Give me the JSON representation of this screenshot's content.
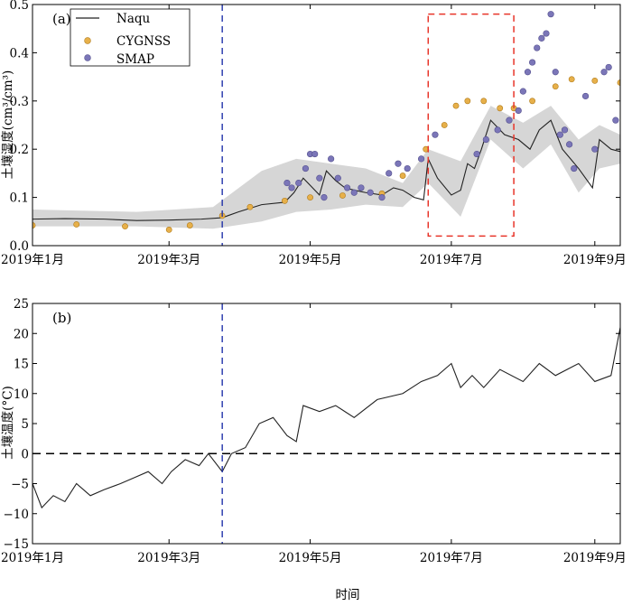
{
  "figure": {
    "xlabel": "时间",
    "x_ticks": [
      "2019年1月",
      "2019年3月",
      "2019年5月",
      "2019年7月",
      "2019年9月"
    ],
    "colors": {
      "naqu": "#222222",
      "band": "#d6d6d6",
      "cygnss_fill": "#e7b04a",
      "cygnss_edge": "#b07a18",
      "smap_fill": "#7b76b8",
      "smap_edge": "#54508e",
      "vline": "#2233aa",
      "box": "#e8352a"
    }
  },
  "chart_data": [
    {
      "type": "line+scatter",
      "panel_label": "(a)",
      "ylabel": "土壤湿度(cm³/cm³)",
      "ylim": [
        0.0,
        0.5
      ],
      "y_ticks": [
        "0.0",
        "0.1",
        "0.2",
        "0.3",
        "0.4",
        "0.5"
      ],
      "x_range": [
        "2019-01-01",
        "2019-09-12"
      ],
      "legend_position": "top-left",
      "legend": [
        "Naqu",
        "CYGNSS",
        "SMAP"
      ],
      "vertical_line_date": "2019-03-24",
      "highlight_box": {
        "x": [
          "2019-06-21",
          "2019-07-28"
        ],
        "y": [
          0.02,
          0.48
        ]
      },
      "series": [
        {
          "name": "Naqu",
          "style": "line",
          "points": [
            [
              "2019-01-01",
              0.055
            ],
            [
              "2019-01-15",
              0.056
            ],
            [
              "2019-02-01",
              0.055
            ],
            [
              "2019-02-15",
              0.052
            ],
            [
              "2019-03-01",
              0.053
            ],
            [
              "2019-03-15",
              0.055
            ],
            [
              "2019-03-24",
              0.058
            ],
            [
              "2019-03-31",
              0.07
            ],
            [
              "2019-04-10",
              0.085
            ],
            [
              "2019-04-20",
              0.09
            ],
            [
              "2019-04-24",
              0.11
            ],
            [
              "2019-04-28",
              0.14
            ],
            [
              "2019-05-02",
              0.12
            ],
            [
              "2019-05-05",
              0.105
            ],
            [
              "2019-05-08",
              0.155
            ],
            [
              "2019-05-12",
              0.135
            ],
            [
              "2019-05-16",
              0.12
            ],
            [
              "2019-05-20",
              0.115
            ],
            [
              "2019-05-25",
              0.11
            ],
            [
              "2019-06-01",
              0.105
            ],
            [
              "2019-06-06",
              0.12
            ],
            [
              "2019-06-10",
              0.115
            ],
            [
              "2019-06-15",
              0.1
            ],
            [
              "2019-06-19",
              0.095
            ],
            [
              "2019-06-21",
              0.18
            ],
            [
              "2019-06-25",
              0.14
            ],
            [
              "2019-07-01",
              0.105
            ],
            [
              "2019-07-05",
              0.115
            ],
            [
              "2019-07-08",
              0.17
            ],
            [
              "2019-07-11",
              0.16
            ],
            [
              "2019-07-14",
              0.2
            ],
            [
              "2019-07-18",
              0.26
            ],
            [
              "2019-07-24",
              0.23
            ],
            [
              "2019-07-30",
              0.22
            ],
            [
              "2019-08-04",
              0.2
            ],
            [
              "2019-08-08",
              0.24
            ],
            [
              "2019-08-13",
              0.26
            ],
            [
              "2019-08-18",
              0.2
            ],
            [
              "2019-08-25",
              0.16
            ],
            [
              "2019-08-31",
              0.12
            ],
            [
              "2019-09-03",
              0.22
            ],
            [
              "2019-09-08",
              0.2
            ],
            [
              "2019-09-12",
              0.195
            ]
          ]
        },
        {
          "name": "CYGNSS",
          "style": "markers",
          "points": [
            [
              "2019-01-01",
              0.042
            ],
            [
              "2019-01-20",
              0.044
            ],
            [
              "2019-02-10",
              0.04
            ],
            [
              "2019-03-01",
              0.033
            ],
            [
              "2019-03-10",
              0.042
            ],
            [
              "2019-03-24",
              0.062
            ],
            [
              "2019-04-05",
              0.08
            ],
            [
              "2019-04-20",
              0.093
            ],
            [
              "2019-05-01",
              0.1
            ],
            [
              "2019-05-15",
              0.104
            ],
            [
              "2019-06-01",
              0.108
            ],
            [
              "2019-06-10",
              0.145
            ],
            [
              "2019-06-20",
              0.2
            ],
            [
              "2019-06-28",
              0.25
            ],
            [
              "2019-07-03",
              0.29
            ],
            [
              "2019-07-08",
              0.3
            ],
            [
              "2019-07-15",
              0.3
            ],
            [
              "2019-07-22",
              0.285
            ],
            [
              "2019-07-28",
              0.285
            ],
            [
              "2019-08-05",
              0.3
            ],
            [
              "2019-08-15",
              0.33
            ],
            [
              "2019-08-22",
              0.345
            ],
            [
              "2019-09-01",
              0.342
            ],
            [
              "2019-09-12",
              0.338
            ]
          ]
        },
        {
          "name": "SMAP",
          "style": "markers",
          "points": [
            [
              "2019-04-21",
              0.13
            ],
            [
              "2019-04-23",
              0.12
            ],
            [
              "2019-04-26",
              0.13
            ],
            [
              "2019-04-29",
              0.16
            ],
            [
              "2019-05-01",
              0.19
            ],
            [
              "2019-05-03",
              0.19
            ],
            [
              "2019-05-05",
              0.14
            ],
            [
              "2019-05-07",
              0.1
            ],
            [
              "2019-05-10",
              0.18
            ],
            [
              "2019-05-13",
              0.14
            ],
            [
              "2019-05-17",
              0.12
            ],
            [
              "2019-05-20",
              0.11
            ],
            [
              "2019-05-23",
              0.12
            ],
            [
              "2019-05-27",
              0.11
            ],
            [
              "2019-06-01",
              0.1
            ],
            [
              "2019-06-04",
              0.15
            ],
            [
              "2019-06-08",
              0.17
            ],
            [
              "2019-06-12",
              0.16
            ],
            [
              "2019-06-18",
              0.18
            ],
            [
              "2019-06-24",
              0.23
            ],
            [
              "2019-07-12",
              0.19
            ],
            [
              "2019-07-16",
              0.22
            ],
            [
              "2019-07-21",
              0.24
            ],
            [
              "2019-07-26",
              0.26
            ],
            [
              "2019-07-30",
              0.28
            ],
            [
              "2019-08-01",
              0.32
            ],
            [
              "2019-08-03",
              0.36
            ],
            [
              "2019-08-05",
              0.38
            ],
            [
              "2019-08-07",
              0.41
            ],
            [
              "2019-08-09",
              0.43
            ],
            [
              "2019-08-11",
              0.44
            ],
            [
              "2019-08-13",
              0.48
            ],
            [
              "2019-08-15",
              0.36
            ],
            [
              "2019-08-17",
              0.23
            ],
            [
              "2019-08-19",
              0.24
            ],
            [
              "2019-08-21",
              0.21
            ],
            [
              "2019-08-23",
              0.16
            ],
            [
              "2019-08-28",
              0.31
            ],
            [
              "2019-09-01",
              0.2
            ],
            [
              "2019-09-05",
              0.36
            ],
            [
              "2019-09-07",
              0.37
            ],
            [
              "2019-09-10",
              0.26
            ]
          ]
        }
      ],
      "band": {
        "upper": [
          [
            "2019-01-01",
            0.075
          ],
          [
            "2019-02-15",
            0.07
          ],
          [
            "2019-03-20",
            0.08
          ],
          [
            "2019-04-10",
            0.155
          ],
          [
            "2019-04-25",
            0.18
          ],
          [
            "2019-05-10",
            0.17
          ],
          [
            "2019-05-25",
            0.16
          ],
          [
            "2019-06-10",
            0.13
          ],
          [
            "2019-06-21",
            0.2
          ],
          [
            "2019-07-05",
            0.175
          ],
          [
            "2019-07-18",
            0.29
          ],
          [
            "2019-08-01",
            0.255
          ],
          [
            "2019-08-13",
            0.29
          ],
          [
            "2019-08-25",
            0.22
          ],
          [
            "2019-09-03",
            0.25
          ],
          [
            "2019-09-12",
            0.23
          ]
        ],
        "lower": [
          [
            "2019-01-01",
            0.04
          ],
          [
            "2019-02-15",
            0.04
          ],
          [
            "2019-03-20",
            0.035
          ],
          [
            "2019-04-10",
            0.05
          ],
          [
            "2019-04-25",
            0.07
          ],
          [
            "2019-05-10",
            0.075
          ],
          [
            "2019-05-25",
            0.085
          ],
          [
            "2019-06-10",
            0.08
          ],
          [
            "2019-06-21",
            0.13
          ],
          [
            "2019-07-05",
            0.06
          ],
          [
            "2019-07-18",
            0.22
          ],
          [
            "2019-08-01",
            0.16
          ],
          [
            "2019-08-13",
            0.21
          ],
          [
            "2019-08-25",
            0.11
          ],
          [
            "2019-09-03",
            0.16
          ],
          [
            "2019-09-12",
            0.17
          ]
        ]
      }
    },
    {
      "type": "line",
      "panel_label": "(b)",
      "ylabel": "土壤温度(°C)",
      "ylim": [
        -15,
        25
      ],
      "y_ticks": [
        "−15",
        "−10",
        "−5",
        "0",
        "5",
        "10",
        "15",
        "20",
        "25"
      ],
      "x_range": [
        "2019-01-01",
        "2019-09-12"
      ],
      "vertical_line_date": "2019-03-24",
      "zero_reference_line": 0,
      "series": [
        {
          "name": "",
          "style": "line",
          "points": [
            [
              "2019-01-01",
              -5
            ],
            [
              "2019-01-05",
              -9
            ],
            [
              "2019-01-10",
              -7
            ],
            [
              "2019-01-15",
              -8
            ],
            [
              "2019-01-20",
              -5
            ],
            [
              "2019-01-26",
              -7
            ],
            [
              "2019-02-01",
              -6
            ],
            [
              "2019-02-08",
              -5
            ],
            [
              "2019-02-14",
              -4
            ],
            [
              "2019-02-20",
              -3
            ],
            [
              "2019-02-26",
              -5
            ],
            [
              "2019-03-02",
              -3
            ],
            [
              "2019-03-08",
              -1
            ],
            [
              "2019-03-14",
              -2
            ],
            [
              "2019-03-18",
              0
            ],
            [
              "2019-03-24",
              -3
            ],
            [
              "2019-03-28",
              0
            ],
            [
              "2019-04-03",
              1
            ],
            [
              "2019-04-09",
              5
            ],
            [
              "2019-04-15",
              6
            ],
            [
              "2019-04-21",
              3
            ],
            [
              "2019-04-25",
              2
            ],
            [
              "2019-04-28",
              8
            ],
            [
              "2019-05-05",
              7
            ],
            [
              "2019-05-12",
              8
            ],
            [
              "2019-05-20",
              6
            ],
            [
              "2019-05-30",
              9
            ],
            [
              "2019-06-10",
              10
            ],
            [
              "2019-06-18",
              12
            ],
            [
              "2019-06-25",
              13
            ],
            [
              "2019-07-01",
              15
            ],
            [
              "2019-07-05",
              11
            ],
            [
              "2019-07-10",
              13
            ],
            [
              "2019-07-15",
              11
            ],
            [
              "2019-07-22",
              14
            ],
            [
              "2019-08-01",
              12
            ],
            [
              "2019-08-08",
              15
            ],
            [
              "2019-08-15",
              13
            ],
            [
              "2019-08-25",
              15
            ],
            [
              "2019-09-01",
              12
            ],
            [
              "2019-09-08",
              13
            ],
            [
              "2019-09-12",
              21
            ]
          ]
        }
      ]
    }
  ]
}
